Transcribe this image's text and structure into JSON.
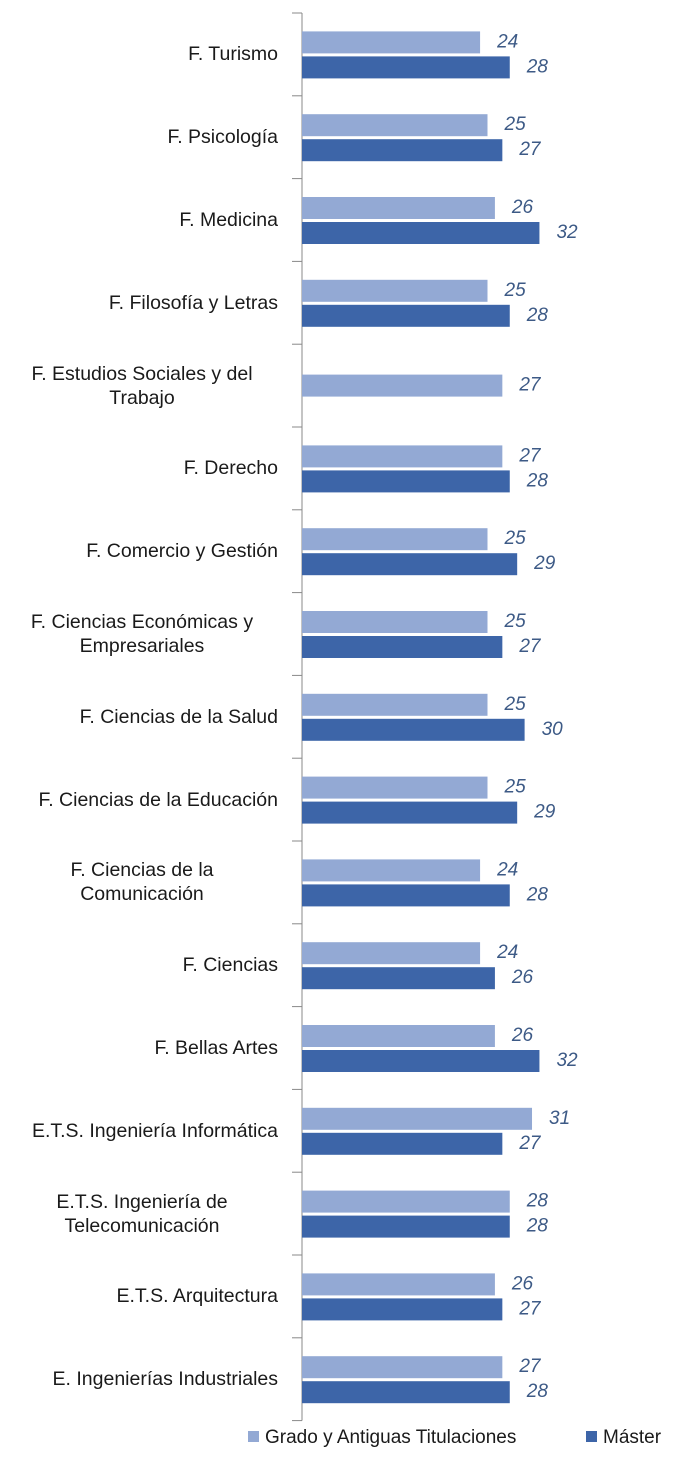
{
  "chart_data": {
    "type": "bar",
    "orientation": "horizontal",
    "categories": [
      "F. Turismo",
      "F. Psicología",
      "F. Medicina",
      "F. Filosofía y Letras",
      "F. Estudios Sociales y del Trabajo",
      "F. Derecho",
      "F. Comercio y Gestión",
      "F. Ciencias Económicas y Empresariales",
      "F. Ciencias de la Salud",
      "F. Ciencias de la Educación",
      "F. Ciencias de la Comunicación",
      "F. Ciencias",
      "F. Bellas Artes",
      "E.T.S. Ingeniería Informática",
      "E.T.S. Ingeniería de Telecomunicación",
      "E.T.S. Arquitectura",
      "E. Ingenierías Industriales"
    ],
    "series": [
      {
        "name": "Grado y Antiguas Titulaciones",
        "color": "#93a9d4",
        "values": [
          24,
          25,
          26,
          25,
          27,
          27,
          25,
          25,
          25,
          25,
          24,
          24,
          26,
          31,
          28,
          26,
          27
        ]
      },
      {
        "name": "Máster",
        "color": "#3d65a8",
        "values": [
          28,
          27,
          32,
          28,
          null,
          28,
          29,
          27,
          30,
          29,
          28,
          26,
          32,
          27,
          28,
          27,
          28
        ]
      }
    ],
    "legend": "bottom"
  }
}
